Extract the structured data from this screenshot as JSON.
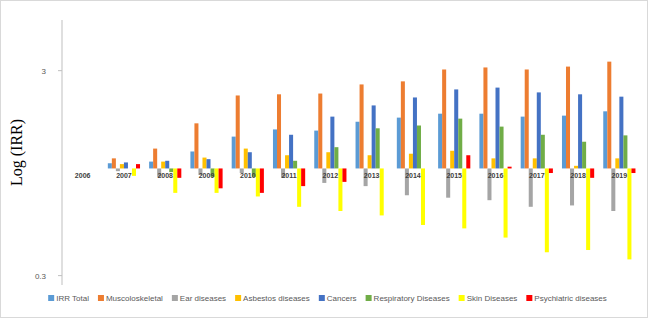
{
  "chart_data": {
    "type": "bar",
    "y_label": "Log (IRR)",
    "categories": [
      "2006",
      "2007",
      "2008",
      "2009",
      "2010",
      "2011",
      "2012",
      "2013",
      "2014",
      "2015",
      "2016",
      "2017",
      "2018",
      "2019"
    ],
    "series": [
      {
        "name": "IRR Total",
        "color": "#5b9bd5",
        "values": [
          1,
          1.06,
          1.08,
          1.21,
          1.43,
          1.55,
          1.53,
          1.69,
          1.77,
          1.85,
          1.85,
          1.79,
          1.81,
          1.9
        ]
      },
      {
        "name": "Muscoloskeletal",
        "color": "#ed7d31",
        "values": [
          1,
          1.12,
          1.25,
          1.66,
          2.27,
          2.3,
          2.32,
          2.57,
          2.66,
          3.04,
          3.11,
          3.04,
          3.14,
          3.32
        ]
      },
      {
        "name": "Ear diseases",
        "color": "#a5a5a5",
        "values": [
          1,
          0.97,
          0.91,
          0.93,
          0.95,
          0.9,
          0.85,
          0.82,
          0.74,
          0.72,
          0.7,
          0.65,
          0.66,
          0.62
        ]
      },
      {
        "name": "Asbestos diseases",
        "color": "#ffc000",
        "values": [
          1,
          1.05,
          1.08,
          1.13,
          1.25,
          1.16,
          1.2,
          1.16,
          1.18,
          1.22,
          1.12,
          1.12,
          1.03,
          1.12
        ]
      },
      {
        "name": "Cancers",
        "color": "#4472c4",
        "values": [
          1,
          1.07,
          1.09,
          1.11,
          1.2,
          1.46,
          1.79,
          2.03,
          2.22,
          2.43,
          2.48,
          2.35,
          2.3,
          2.24
        ]
      },
      {
        "name": "Respiratory Diseases",
        "color": "#70ad47",
        "values": [
          1,
          1,
          0.96,
          0.91,
          0.91,
          1.09,
          1.27,
          1.57,
          1.62,
          1.75,
          1.6,
          1.46,
          1.35,
          1.45
        ]
      },
      {
        "name": "Skin Diseases",
        "color": "#ffff00",
        "values": [
          1,
          0.92,
          0.76,
          0.76,
          0.73,
          0.65,
          0.62,
          0.59,
          0.53,
          0.51,
          0.46,
          0.39,
          0.4,
          0.36
        ]
      },
      {
        "name": "Psychiatric diseases",
        "color": "#ff0000",
        "values": [
          1,
          1.05,
          0.9,
          0.8,
          0.76,
          0.82,
          0.86,
          1,
          1,
          1.16,
          1.02,
          0.95,
          0.9,
          0.95
        ]
      }
    ],
    "ylim": [
      0.27,
      5.3
    ],
    "yticks": [
      3,
      0.3
    ],
    "log": "y",
    "grid": false,
    "legend": "bottom"
  }
}
